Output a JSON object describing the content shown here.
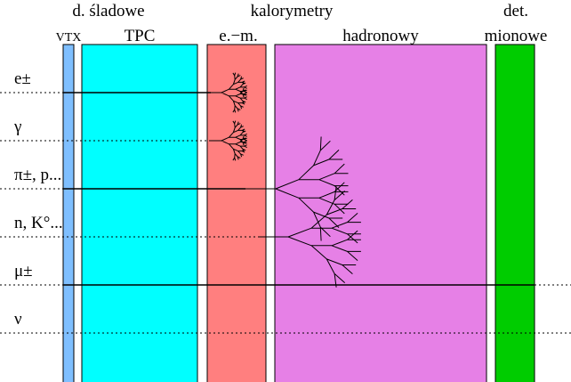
{
  "headers": {
    "tracking": "d. śladowe",
    "vtx": "VTX",
    "tpc": "TPC",
    "calorimeters": "kalorymetry",
    "em": "e.−m.",
    "hadronic": "hadronowy",
    "muon_top": "det.",
    "muon_bottom": "mionowe"
  },
  "particles": [
    "e±",
    "γ",
    "π±, p...",
    "n, K°...",
    "μ±",
    "ν"
  ]
}
